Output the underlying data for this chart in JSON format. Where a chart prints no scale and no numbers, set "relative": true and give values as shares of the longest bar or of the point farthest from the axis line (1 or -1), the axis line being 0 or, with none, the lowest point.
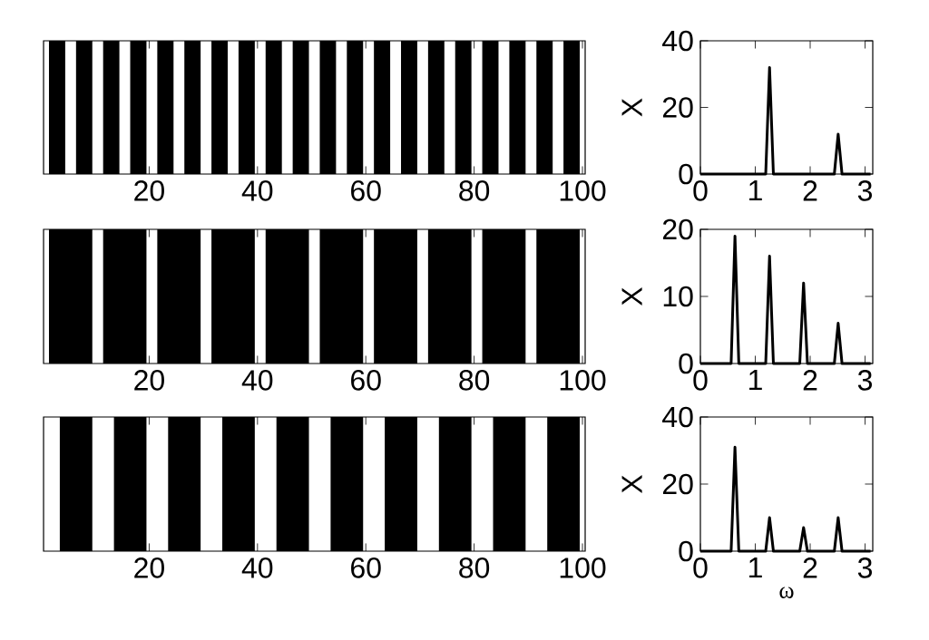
{
  "chart_data": [
    {
      "type": "area",
      "relative": true,
      "color": "#000000",
      "xlim": [
        0.5,
        100.5
      ],
      "xticks": [
        20,
        40,
        60,
        80,
        100
      ],
      "tick_labels": "x",
      "x": [
        0.5,
        1.5,
        1.5,
        4.5,
        4.5,
        6.5,
        6.5,
        9.5,
        9.5,
        11.5,
        11.5,
        14.5,
        14.5,
        16.5,
        16.5,
        19.5,
        19.5,
        21.5,
        21.5,
        24.5,
        24.5,
        26.5,
        26.5,
        29.5,
        29.5,
        31.5,
        31.5,
        34.5,
        34.5,
        36.5,
        36.5,
        39.5,
        39.5,
        41.5,
        41.5,
        44.5,
        44.5,
        46.5,
        46.5,
        49.5,
        49.5,
        51.5,
        51.5,
        54.5,
        54.5,
        56.5,
        56.5,
        59.5,
        59.5,
        61.5,
        61.5,
        64.5,
        64.5,
        66.5,
        66.5,
        69.5,
        69.5,
        71.5,
        71.5,
        74.5,
        74.5,
        76.5,
        76.5,
        79.5,
        79.5,
        81.5,
        81.5,
        84.5,
        84.5,
        86.5,
        86.5,
        89.5,
        89.5,
        91.5,
        91.5,
        94.5,
        94.5,
        96.5,
        96.5,
        99.5,
        99.5,
        100.5
      ],
      "values": [
        0,
        0,
        1,
        1,
        0,
        0,
        1,
        1,
        0,
        0,
        1,
        1,
        0,
        0,
        1,
        1,
        0,
        0,
        1,
        1,
        0,
        0,
        1,
        1,
        0,
        0,
        1,
        1,
        0,
        0,
        1,
        1,
        0,
        0,
        1,
        1,
        0,
        0,
        1,
        1,
        0,
        0,
        1,
        1,
        0,
        0,
        1,
        1,
        0,
        0,
        1,
        1,
        0,
        0,
        1,
        1,
        0,
        0,
        1,
        1,
        0,
        0,
        1,
        1,
        0,
        0,
        1,
        1,
        0,
        0,
        1,
        1,
        0,
        0,
        1,
        1,
        0,
        0,
        1,
        1,
        0,
        0
      ]
    },
    {
      "type": "line",
      "color": "#000000",
      "ylabel": "X",
      "xlim": [
        0,
        3.14
      ],
      "xticks": [
        0,
        1,
        2,
        3
      ],
      "ylim": [
        0,
        40
      ],
      "yticks": [
        0,
        20,
        40
      ],
      "x": [
        0,
        1.19,
        1.26,
        1.33,
        2.44,
        2.51,
        2.58,
        3.1
      ],
      "values": [
        0,
        0,
        32,
        0,
        0,
        12,
        0,
        0
      ]
    },
    {
      "type": "area",
      "relative": true,
      "color": "#000000",
      "xlim": [
        0.5,
        100.5
      ],
      "xticks": [
        20,
        40,
        60,
        80,
        100
      ],
      "tick_labels": "x",
      "x": [
        0.5,
        1.5,
        1.5,
        9.5,
        9.5,
        11.5,
        11.5,
        19.5,
        19.5,
        21.5,
        21.5,
        29.5,
        29.5,
        31.5,
        31.5,
        39.5,
        39.5,
        41.5,
        41.5,
        49.5,
        49.5,
        51.5,
        51.5,
        59.5,
        59.5,
        61.5,
        61.5,
        69.5,
        69.5,
        71.5,
        71.5,
        79.5,
        79.5,
        81.5,
        81.5,
        89.5,
        89.5,
        91.5,
        91.5,
        99.5,
        99.5,
        100.5
      ],
      "values": [
        0,
        0,
        1,
        1,
        0,
        0,
        1,
        1,
        0,
        0,
        1,
        1,
        0,
        0,
        1,
        1,
        0,
        0,
        1,
        1,
        0,
        0,
        1,
        1,
        0,
        0,
        1,
        1,
        0,
        0,
        1,
        1,
        0,
        0,
        1,
        1,
        0,
        0,
        1,
        1,
        0,
        0
      ]
    },
    {
      "type": "line",
      "color": "#000000",
      "ylabel": "X",
      "xlim": [
        0,
        3.14
      ],
      "xticks": [
        0,
        1,
        2,
        3
      ],
      "ylim": [
        0,
        20
      ],
      "yticks": [
        0,
        10,
        20
      ],
      "x": [
        0,
        0.56,
        0.63,
        0.7,
        1.19,
        1.26,
        1.33,
        1.81,
        1.88,
        1.95,
        2.44,
        2.51,
        2.58,
        3.1
      ],
      "values": [
        0,
        0,
        19,
        0,
        0,
        16,
        0,
        0,
        12,
        0,
        0,
        6,
        0,
        0
      ]
    },
    {
      "type": "area",
      "relative": true,
      "color": "#000000",
      "xlim": [
        0.5,
        100.5
      ],
      "xticks": [
        20,
        40,
        60,
        80,
        100
      ],
      "tick_labels": "x",
      "x": [
        0.5,
        3.5,
        3.5,
        9.5,
        9.5,
        13.5,
        13.5,
        19.5,
        19.5,
        23.5,
        23.5,
        29.5,
        29.5,
        33.5,
        33.5,
        39.5,
        39.5,
        43.5,
        43.5,
        49.5,
        49.5,
        53.5,
        53.5,
        59.5,
        59.5,
        63.5,
        63.5,
        69.5,
        69.5,
        73.5,
        73.5,
        79.5,
        79.5,
        83.5,
        83.5,
        89.5,
        89.5,
        93.5,
        93.5,
        99.5,
        99.5,
        100.5
      ],
      "values": [
        0,
        0,
        1,
        1,
        0,
        0,
        1,
        1,
        0,
        0,
        1,
        1,
        0,
        0,
        1,
        1,
        0,
        0,
        1,
        1,
        0,
        0,
        1,
        1,
        0,
        0,
        1,
        1,
        0,
        0,
        1,
        1,
        0,
        0,
        1,
        1,
        0,
        0,
        1,
        1,
        0,
        0
      ]
    },
    {
      "type": "line",
      "color": "#000000",
      "xlabel": "ω",
      "ylabel": "X",
      "xlim": [
        0,
        3.14
      ],
      "xticks": [
        0,
        1,
        2,
        3
      ],
      "ylim": [
        0,
        40
      ],
      "yticks": [
        0,
        20,
        40
      ],
      "x": [
        0,
        0.56,
        0.63,
        0.7,
        1.19,
        1.26,
        1.33,
        1.81,
        1.88,
        1.95,
        2.44,
        2.51,
        2.58,
        3.1
      ],
      "values": [
        0,
        0,
        31,
        0,
        0,
        10,
        0,
        0,
        7,
        0,
        0,
        10,
        0,
        0
      ]
    }
  ]
}
